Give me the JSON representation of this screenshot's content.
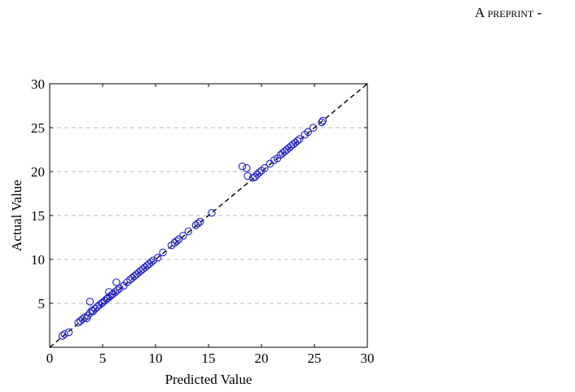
{
  "header": {
    "running_head": "A preprint -"
  },
  "chart_data": {
    "type": "scatter",
    "xlabel": "Predicted Value",
    "ylabel": "Actual Value",
    "xlim": [
      0,
      30
    ],
    "ylim": [
      0,
      30
    ],
    "xticks": [
      0,
      5,
      10,
      15,
      20,
      25,
      30
    ],
    "yticks": [
      5,
      10,
      15,
      20,
      25,
      30
    ],
    "grid": "horizontal dashed",
    "reference_line": "y = x (dashed)",
    "marker": "open circle",
    "marker_color": "#1f1fd6",
    "series": [
      {
        "points": [
          [
            1.2,
            1.3
          ],
          [
            1.4,
            1.5
          ],
          [
            1.8,
            1.7
          ],
          [
            2.7,
            2.8
          ],
          [
            2.9,
            3.0
          ],
          [
            3.1,
            3.2
          ],
          [
            3.3,
            3.4
          ],
          [
            3.5,
            3.3
          ],
          [
            3.6,
            3.6
          ],
          [
            3.8,
            5.2
          ],
          [
            3.8,
            3.9
          ],
          [
            4.0,
            4.2
          ],
          [
            4.1,
            4.1
          ],
          [
            4.3,
            4.4
          ],
          [
            4.5,
            4.6
          ],
          [
            4.7,
            4.8
          ],
          [
            4.9,
            5.0
          ],
          [
            5.0,
            5.1
          ],
          [
            5.2,
            5.3
          ],
          [
            5.4,
            5.5
          ],
          [
            5.5,
            5.6
          ],
          [
            5.6,
            6.3
          ],
          [
            5.7,
            5.8
          ],
          [
            5.9,
            6.0
          ],
          [
            6.0,
            6.1
          ],
          [
            6.2,
            6.3
          ],
          [
            6.3,
            7.4
          ],
          [
            6.4,
            6.5
          ],
          [
            6.6,
            6.7
          ],
          [
            7.0,
            7.0
          ],
          [
            7.3,
            7.4
          ],
          [
            7.6,
            7.7
          ],
          [
            7.8,
            7.9
          ],
          [
            8.0,
            8.1
          ],
          [
            8.2,
            8.3
          ],
          [
            8.4,
            8.5
          ],
          [
            8.6,
            8.7
          ],
          [
            8.8,
            8.9
          ],
          [
            9.0,
            9.1
          ],
          [
            9.2,
            9.3
          ],
          [
            9.4,
            9.5
          ],
          [
            9.6,
            9.7
          ],
          [
            9.8,
            9.9
          ],
          [
            10.2,
            10.2
          ],
          [
            10.7,
            10.8
          ],
          [
            11.5,
            11.6
          ],
          [
            11.8,
            11.9
          ],
          [
            12.0,
            12.1
          ],
          [
            12.2,
            12.3
          ],
          [
            12.6,
            12.7
          ],
          [
            13.1,
            13.2
          ],
          [
            13.8,
            13.9
          ],
          [
            14.0,
            14.1
          ],
          [
            14.2,
            14.3
          ],
          [
            15.3,
            15.3
          ],
          [
            18.2,
            20.6
          ],
          [
            18.6,
            20.4
          ],
          [
            18.7,
            19.5
          ],
          [
            19.2,
            19.3
          ],
          [
            19.4,
            19.4
          ],
          [
            19.6,
            19.7
          ],
          [
            19.8,
            19.9
          ],
          [
            20.0,
            20.1
          ],
          [
            20.3,
            20.4
          ],
          [
            20.8,
            20.9
          ],
          [
            21.2,
            21.3
          ],
          [
            21.5,
            21.5
          ],
          [
            21.8,
            21.9
          ],
          [
            22.0,
            22.1
          ],
          [
            22.2,
            22.3
          ],
          [
            22.4,
            22.5
          ],
          [
            22.6,
            22.7
          ],
          [
            22.8,
            22.9
          ],
          [
            23.0,
            23.1
          ],
          [
            23.2,
            23.3
          ],
          [
            23.4,
            23.5
          ],
          [
            23.6,
            23.7
          ],
          [
            24.1,
            24.2
          ],
          [
            24.4,
            24.5
          ],
          [
            24.9,
            25.0
          ],
          [
            25.7,
            25.6
          ],
          [
            25.8,
            25.8
          ]
        ]
      }
    ]
  }
}
